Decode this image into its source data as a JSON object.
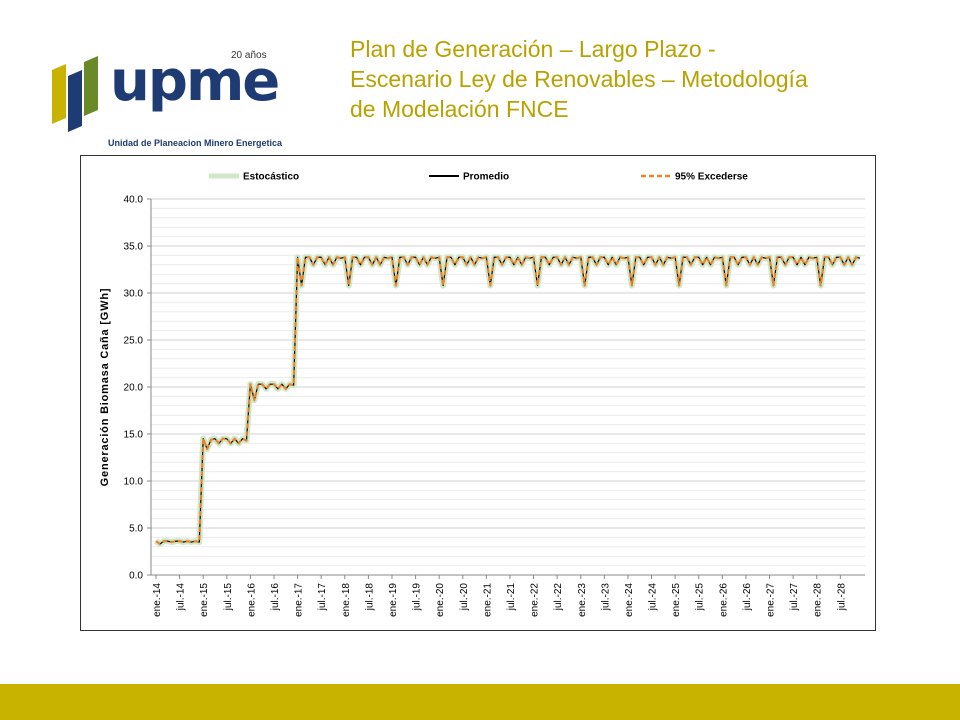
{
  "header": {
    "title_lines": [
      "Plan de Generación – Largo Plazo -",
      "Escenario Ley de Renovables – Metodología",
      "de Modelación FNCE"
    ]
  },
  "logo": {
    "brand": "upme",
    "anniversary": "20 años",
    "subtitle": "Unidad de Planeacion Minero Energetica"
  },
  "colors": {
    "title": "#b8a100",
    "footer_bar": "#c8b400",
    "estocastico": "#cfe8c8",
    "promedio": "#000000",
    "excederse": "#e8832e",
    "brand_blue": "#1f3b73",
    "brand_green": "#6a8a2a"
  },
  "chart_data": {
    "type": "line",
    "title": "",
    "xlabel": "",
    "ylabel": "Generación Biomasa Caña [GWh]",
    "ylim": [
      0,
      40
    ],
    "yticks": [
      "0.0",
      "5.0",
      "10.0",
      "15.0",
      "20.0",
      "25.0",
      "30.0",
      "35.0",
      "40.0"
    ],
    "grid": true,
    "legend_position": "top",
    "x_tick_labels": [
      "ene.-14",
      "jul.-14",
      "ene.-15",
      "jul.-15",
      "ene.-16",
      "jul.-16",
      "ene.-17",
      "jul.-17",
      "ene.-18",
      "jul.-18",
      "ene.-19",
      "jul.-19",
      "ene.-20",
      "jul.-20",
      "ene.-21",
      "jul.-21",
      "ene.-22",
      "jul.-22",
      "ene.-23",
      "jul.-23",
      "ene.-24",
      "jul.-24",
      "ene.-25",
      "jul.-25",
      "ene.-26",
      "jul.-26",
      "ene.-27",
      "jul.-27",
      "ene.-28",
      "jul.-28"
    ],
    "x_start": "ene.-14",
    "x_end": "dic.-28",
    "series": [
      {
        "name": "Estocástico",
        "style": "band"
      },
      {
        "name": "Promedio",
        "style": "solid"
      },
      {
        "name": "95% Excederse",
        "style": "dashed"
      }
    ],
    "monthly_values": {
      "2014": [
        3.6,
        3.3,
        3.6,
        3.6,
        3.5,
        3.6,
        3.6,
        3.5,
        3.6,
        3.5,
        3.6,
        3.5
      ],
      "2015": [
        14.5,
        13.4,
        14.4,
        14.5,
        14.0,
        14.5,
        14.5,
        14.0,
        14.5,
        14.0,
        14.5,
        14.3
      ],
      "2016": [
        20.3,
        18.6,
        20.3,
        20.3,
        19.8,
        20.3,
        20.3,
        19.8,
        20.3,
        19.8,
        20.3,
        20.2
      ],
      "2017": [
        33.8,
        30.8,
        33.8,
        33.8,
        33.0,
        33.8,
        33.8,
        33.0,
        33.8,
        33.0,
        33.8,
        33.7
      ],
      "2018": [
        33.8,
        30.8,
        33.8,
        33.8,
        33.0,
        33.8,
        33.8,
        33.0,
        33.8,
        33.0,
        33.8,
        33.7
      ],
      "2019": [
        33.8,
        30.8,
        33.8,
        33.8,
        33.0,
        33.8,
        33.8,
        33.0,
        33.8,
        33.0,
        33.8,
        33.7
      ],
      "2020": [
        33.8,
        30.8,
        33.8,
        33.8,
        33.0,
        33.8,
        33.8,
        33.0,
        33.8,
        33.0,
        33.8,
        33.7
      ],
      "2021": [
        33.8,
        30.8,
        33.8,
        33.8,
        33.0,
        33.8,
        33.8,
        33.0,
        33.8,
        33.0,
        33.8,
        33.7
      ],
      "2022": [
        33.8,
        30.8,
        33.8,
        33.8,
        33.0,
        33.8,
        33.8,
        33.0,
        33.8,
        33.0,
        33.8,
        33.7
      ],
      "2023": [
        33.8,
        30.8,
        33.8,
        33.8,
        33.0,
        33.8,
        33.8,
        33.0,
        33.8,
        33.0,
        33.8,
        33.7
      ],
      "2024": [
        33.8,
        30.8,
        33.8,
        33.8,
        33.0,
        33.8,
        33.8,
        33.0,
        33.8,
        33.0,
        33.8,
        33.7
      ],
      "2025": [
        33.8,
        30.8,
        33.8,
        33.8,
        33.0,
        33.8,
        33.8,
        33.0,
        33.8,
        33.0,
        33.8,
        33.7
      ],
      "2026": [
        33.8,
        30.8,
        33.8,
        33.8,
        33.0,
        33.8,
        33.8,
        33.0,
        33.8,
        33.0,
        33.8,
        33.7
      ],
      "2027": [
        33.8,
        30.8,
        33.8,
        33.8,
        33.0,
        33.8,
        33.8,
        33.0,
        33.8,
        33.0,
        33.8,
        33.7
      ],
      "2028": [
        33.8,
        30.8,
        33.8,
        33.8,
        33.0,
        33.8,
        33.8,
        33.0,
        33.8,
        33.0,
        33.8,
        33.7
      ]
    }
  }
}
